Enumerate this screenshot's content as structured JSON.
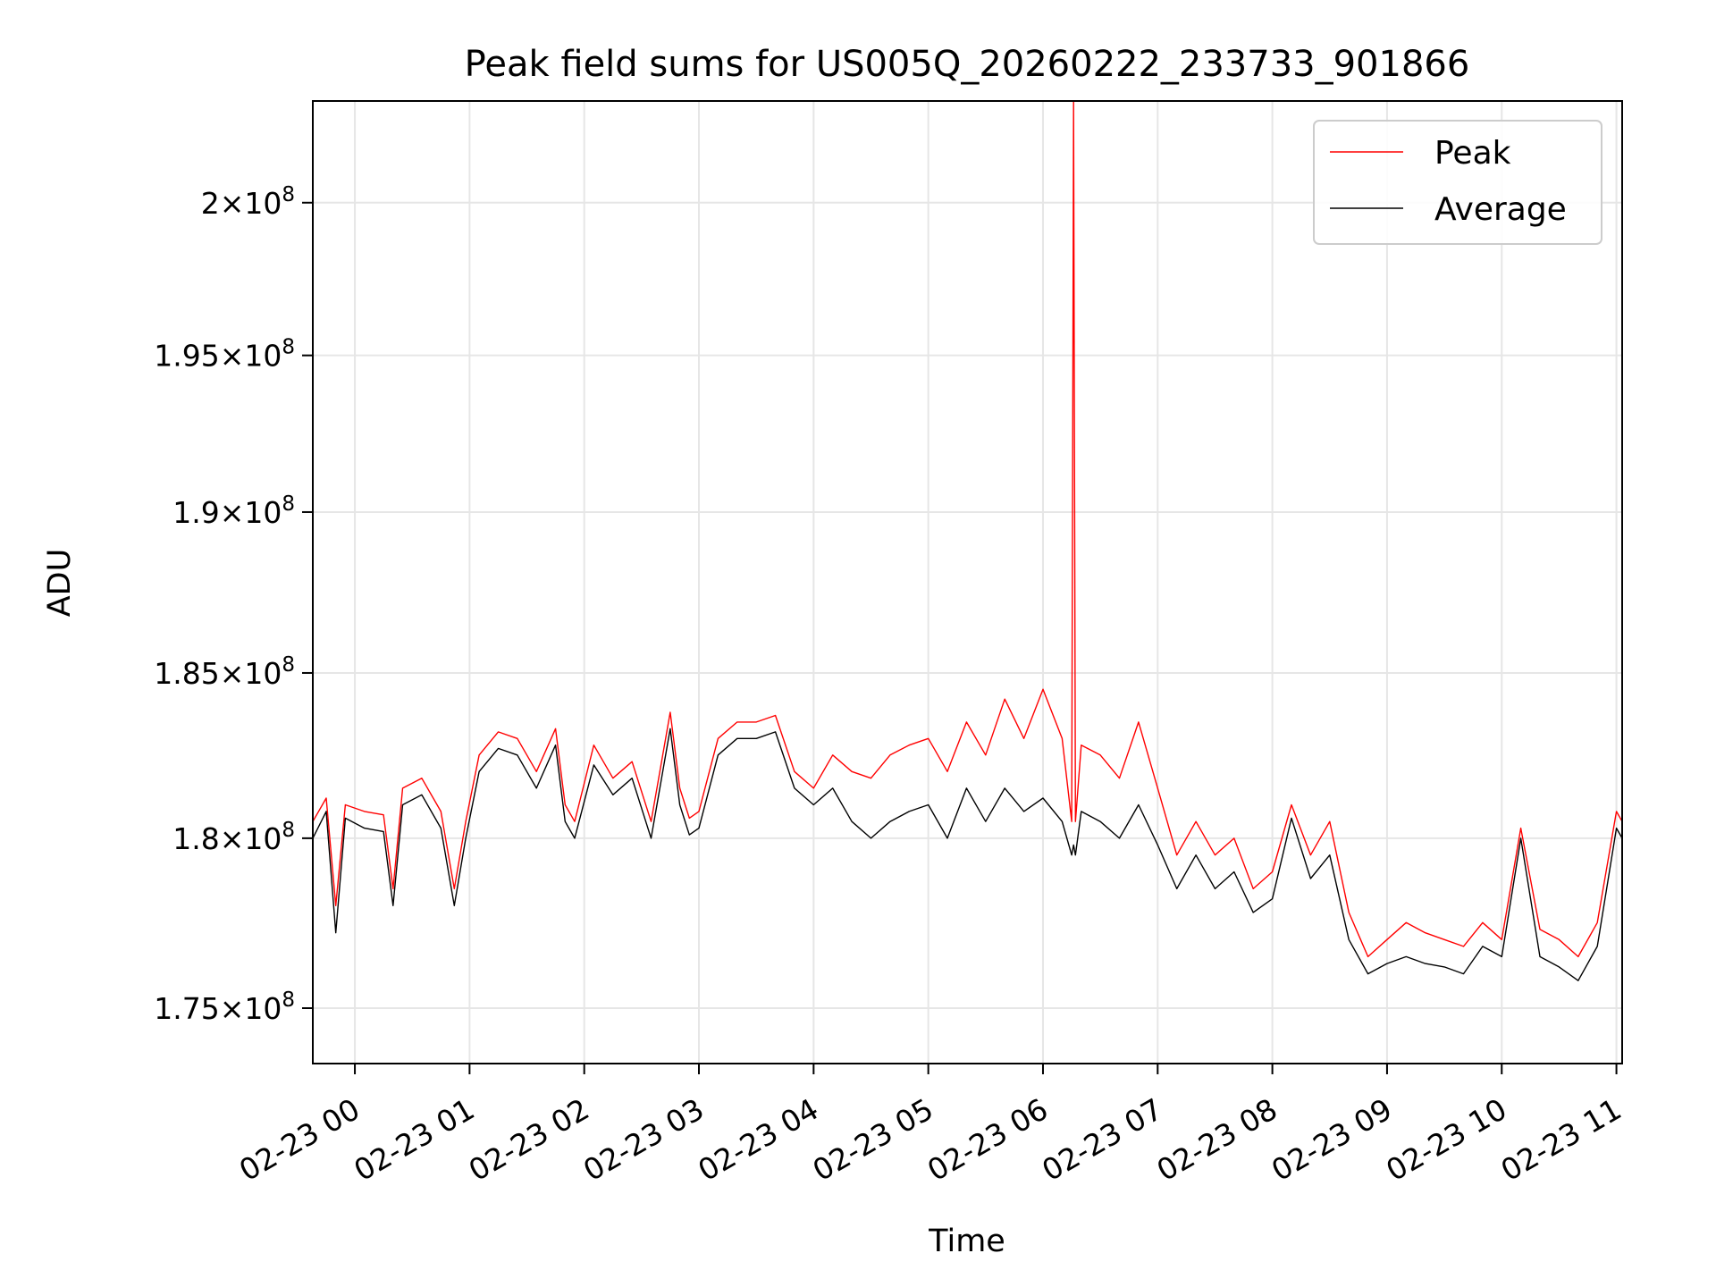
{
  "chart_data": {
    "type": "line",
    "title": "Peak field sums for US005Q_20260222_233733_901866",
    "xlabel": "Time",
    "ylabel": "ADU",
    "x_ticks": [
      "02-23 00",
      "02-23 01",
      "02-23 02",
      "02-23 03",
      "02-23 04",
      "02-23 05",
      "02-23 06",
      "02-23 07",
      "02-23 08",
      "02-23 09",
      "02-23 10",
      "02-23 11"
    ],
    "y_ticks": [
      {
        "value": 175000000,
        "mantissa": "1.75",
        "exponent": "8"
      },
      {
        "value": 180000000,
        "mantissa": "1.8",
        "exponent": "8"
      },
      {
        "value": 185000000,
        "mantissa": "1.85",
        "exponent": "8"
      },
      {
        "value": 190000000,
        "mantissa": "1.9",
        "exponent": "8"
      },
      {
        "value": 195000000,
        "mantissa": "1.95",
        "exponent": "8"
      },
      {
        "value": 200000000,
        "mantissa": "2",
        "exponent": "8"
      }
    ],
    "times_symbol": "×",
    "y_scale": "log",
    "xlim": [
      "02-22 23:38",
      "02-23 11:03"
    ],
    "ylim": [
      173400000,
      203400000
    ],
    "grid": true,
    "legend_position": "top-right",
    "series": [
      {
        "name": "Peak",
        "color": "#ff0000",
        "x": [
          "02-22 23:38",
          "02-22 23:45",
          "02-22 23:50",
          "02-22 23:55",
          "02-23 00:05",
          "02-23 00:15",
          "02-23 00:20",
          "02-23 00:25",
          "02-23 00:35",
          "02-23 00:45",
          "02-23 00:52",
          "02-23 00:58",
          "02-23 01:05",
          "02-23 01:15",
          "02-23 01:25",
          "02-23 01:35",
          "02-23 01:45",
          "02-23 01:50",
          "02-23 01:55",
          "02-23 02:05",
          "02-23 02:15",
          "02-23 02:25",
          "02-23 02:35",
          "02-23 02:45",
          "02-23 02:50",
          "02-23 02:55",
          "02-23 03:00",
          "02-23 03:10",
          "02-23 03:20",
          "02-23 03:30",
          "02-23 03:40",
          "02-23 03:50",
          "02-23 04:00",
          "02-23 04:10",
          "02-23 04:20",
          "02-23 04:30",
          "02-23 04:40",
          "02-23 04:50",
          "02-23 05:00",
          "02-23 05:10",
          "02-23 05:20",
          "02-23 05:30",
          "02-23 05:40",
          "02-23 05:50",
          "02-23 06:00",
          "02-23 06:10",
          "02-23 06:15",
          "02-23 06:16",
          "02-23 06:17",
          "02-23 06:20",
          "02-23 06:30",
          "02-23 06:40",
          "02-23 06:50",
          "02-23 07:00",
          "02-23 07:10",
          "02-23 07:20",
          "02-23 07:30",
          "02-23 07:40",
          "02-23 07:50",
          "02-23 08:00",
          "02-23 08:10",
          "02-23 08:20",
          "02-23 08:30",
          "02-23 08:40",
          "02-23 08:50",
          "02-23 09:00",
          "02-23 09:10",
          "02-23 09:20",
          "02-23 09:30",
          "02-23 09:40",
          "02-23 09:50",
          "02-23 10:00",
          "02-23 10:10",
          "02-23 10:20",
          "02-23 10:30",
          "02-23 10:40",
          "02-23 10:50",
          "02-23 11:00",
          "02-23 11:03"
        ],
        "y": [
          180500000,
          181200000,
          178000000,
          181000000,
          180800000,
          180700000,
          178500000,
          181500000,
          181800000,
          180800000,
          178500000,
          180500000,
          182500000,
          183200000,
          183000000,
          182000000,
          183300000,
          181000000,
          180500000,
          182800000,
          181800000,
          182300000,
          180500000,
          183800000,
          181500000,
          180600000,
          180800000,
          183000000,
          183500000,
          183500000,
          183700000,
          182000000,
          181500000,
          182500000,
          182000000,
          181800000,
          182500000,
          182800000,
          183000000,
          182000000,
          183500000,
          182500000,
          184200000,
          183000000,
          184500000,
          183000000,
          180500000,
          203400000,
          180500000,
          182800000,
          182500000,
          181800000,
          183500000,
          181500000,
          179500000,
          180500000,
          179500000,
          180000000,
          178500000,
          179000000,
          181000000,
          179500000,
          180500000,
          177800000,
          176500000,
          177000000,
          177500000,
          177200000,
          177000000,
          176800000,
          177500000,
          177000000,
          180300000,
          177300000,
          177000000,
          176500000,
          177500000,
          180800000,
          180500000
        ]
      },
      {
        "name": "Average",
        "color": "#000000",
        "x": [
          "02-22 23:38",
          "02-22 23:45",
          "02-22 23:50",
          "02-22 23:55",
          "02-23 00:05",
          "02-23 00:15",
          "02-23 00:20",
          "02-23 00:25",
          "02-23 00:35",
          "02-23 00:45",
          "02-23 00:52",
          "02-23 00:58",
          "02-23 01:05",
          "02-23 01:15",
          "02-23 01:25",
          "02-23 01:35",
          "02-23 01:45",
          "02-23 01:50",
          "02-23 01:55",
          "02-23 02:05",
          "02-23 02:15",
          "02-23 02:25",
          "02-23 02:35",
          "02-23 02:45",
          "02-23 02:50",
          "02-23 02:55",
          "02-23 03:00",
          "02-23 03:10",
          "02-23 03:20",
          "02-23 03:30",
          "02-23 03:40",
          "02-23 03:50",
          "02-23 04:00",
          "02-23 04:10",
          "02-23 04:20",
          "02-23 04:30",
          "02-23 04:40",
          "02-23 04:50",
          "02-23 05:00",
          "02-23 05:10",
          "02-23 05:20",
          "02-23 05:30",
          "02-23 05:40",
          "02-23 05:50",
          "02-23 06:00",
          "02-23 06:10",
          "02-23 06:15",
          "02-23 06:16",
          "02-23 06:17",
          "02-23 06:20",
          "02-23 06:30",
          "02-23 06:40",
          "02-23 06:50",
          "02-23 07:00",
          "02-23 07:10",
          "02-23 07:20",
          "02-23 07:30",
          "02-23 07:40",
          "02-23 07:50",
          "02-23 08:00",
          "02-23 08:10",
          "02-23 08:20",
          "02-23 08:30",
          "02-23 08:40",
          "02-23 08:50",
          "02-23 09:00",
          "02-23 09:10",
          "02-23 09:20",
          "02-23 09:30",
          "02-23 09:40",
          "02-23 09:50",
          "02-23 10:00",
          "02-23 10:10",
          "02-23 10:20",
          "02-23 10:30",
          "02-23 10:40",
          "02-23 10:50",
          "02-23 11:00",
          "02-23 11:03"
        ],
        "y": [
          180000000,
          180800000,
          177200000,
          180600000,
          180300000,
          180200000,
          178000000,
          181000000,
          181300000,
          180300000,
          178000000,
          180000000,
          182000000,
          182700000,
          182500000,
          181500000,
          182800000,
          180500000,
          180000000,
          182200000,
          181300000,
          181800000,
          180000000,
          183300000,
          181000000,
          180100000,
          180300000,
          182500000,
          183000000,
          183000000,
          183200000,
          181500000,
          181000000,
          181500000,
          180500000,
          180000000,
          180500000,
          180800000,
          181000000,
          180000000,
          181500000,
          180500000,
          181500000,
          180800000,
          181200000,
          180500000,
          179500000,
          179800000,
          179500000,
          180800000,
          180500000,
          180000000,
          181000000,
          179800000,
          178500000,
          179500000,
          178500000,
          179000000,
          177800000,
          178200000,
          180600000,
          178800000,
          179500000,
          177000000,
          176000000,
          176300000,
          176500000,
          176300000,
          176200000,
          176000000,
          176800000,
          176500000,
          180000000,
          176500000,
          176200000,
          175800000,
          176800000,
          180300000,
          180000000
        ]
      }
    ]
  }
}
